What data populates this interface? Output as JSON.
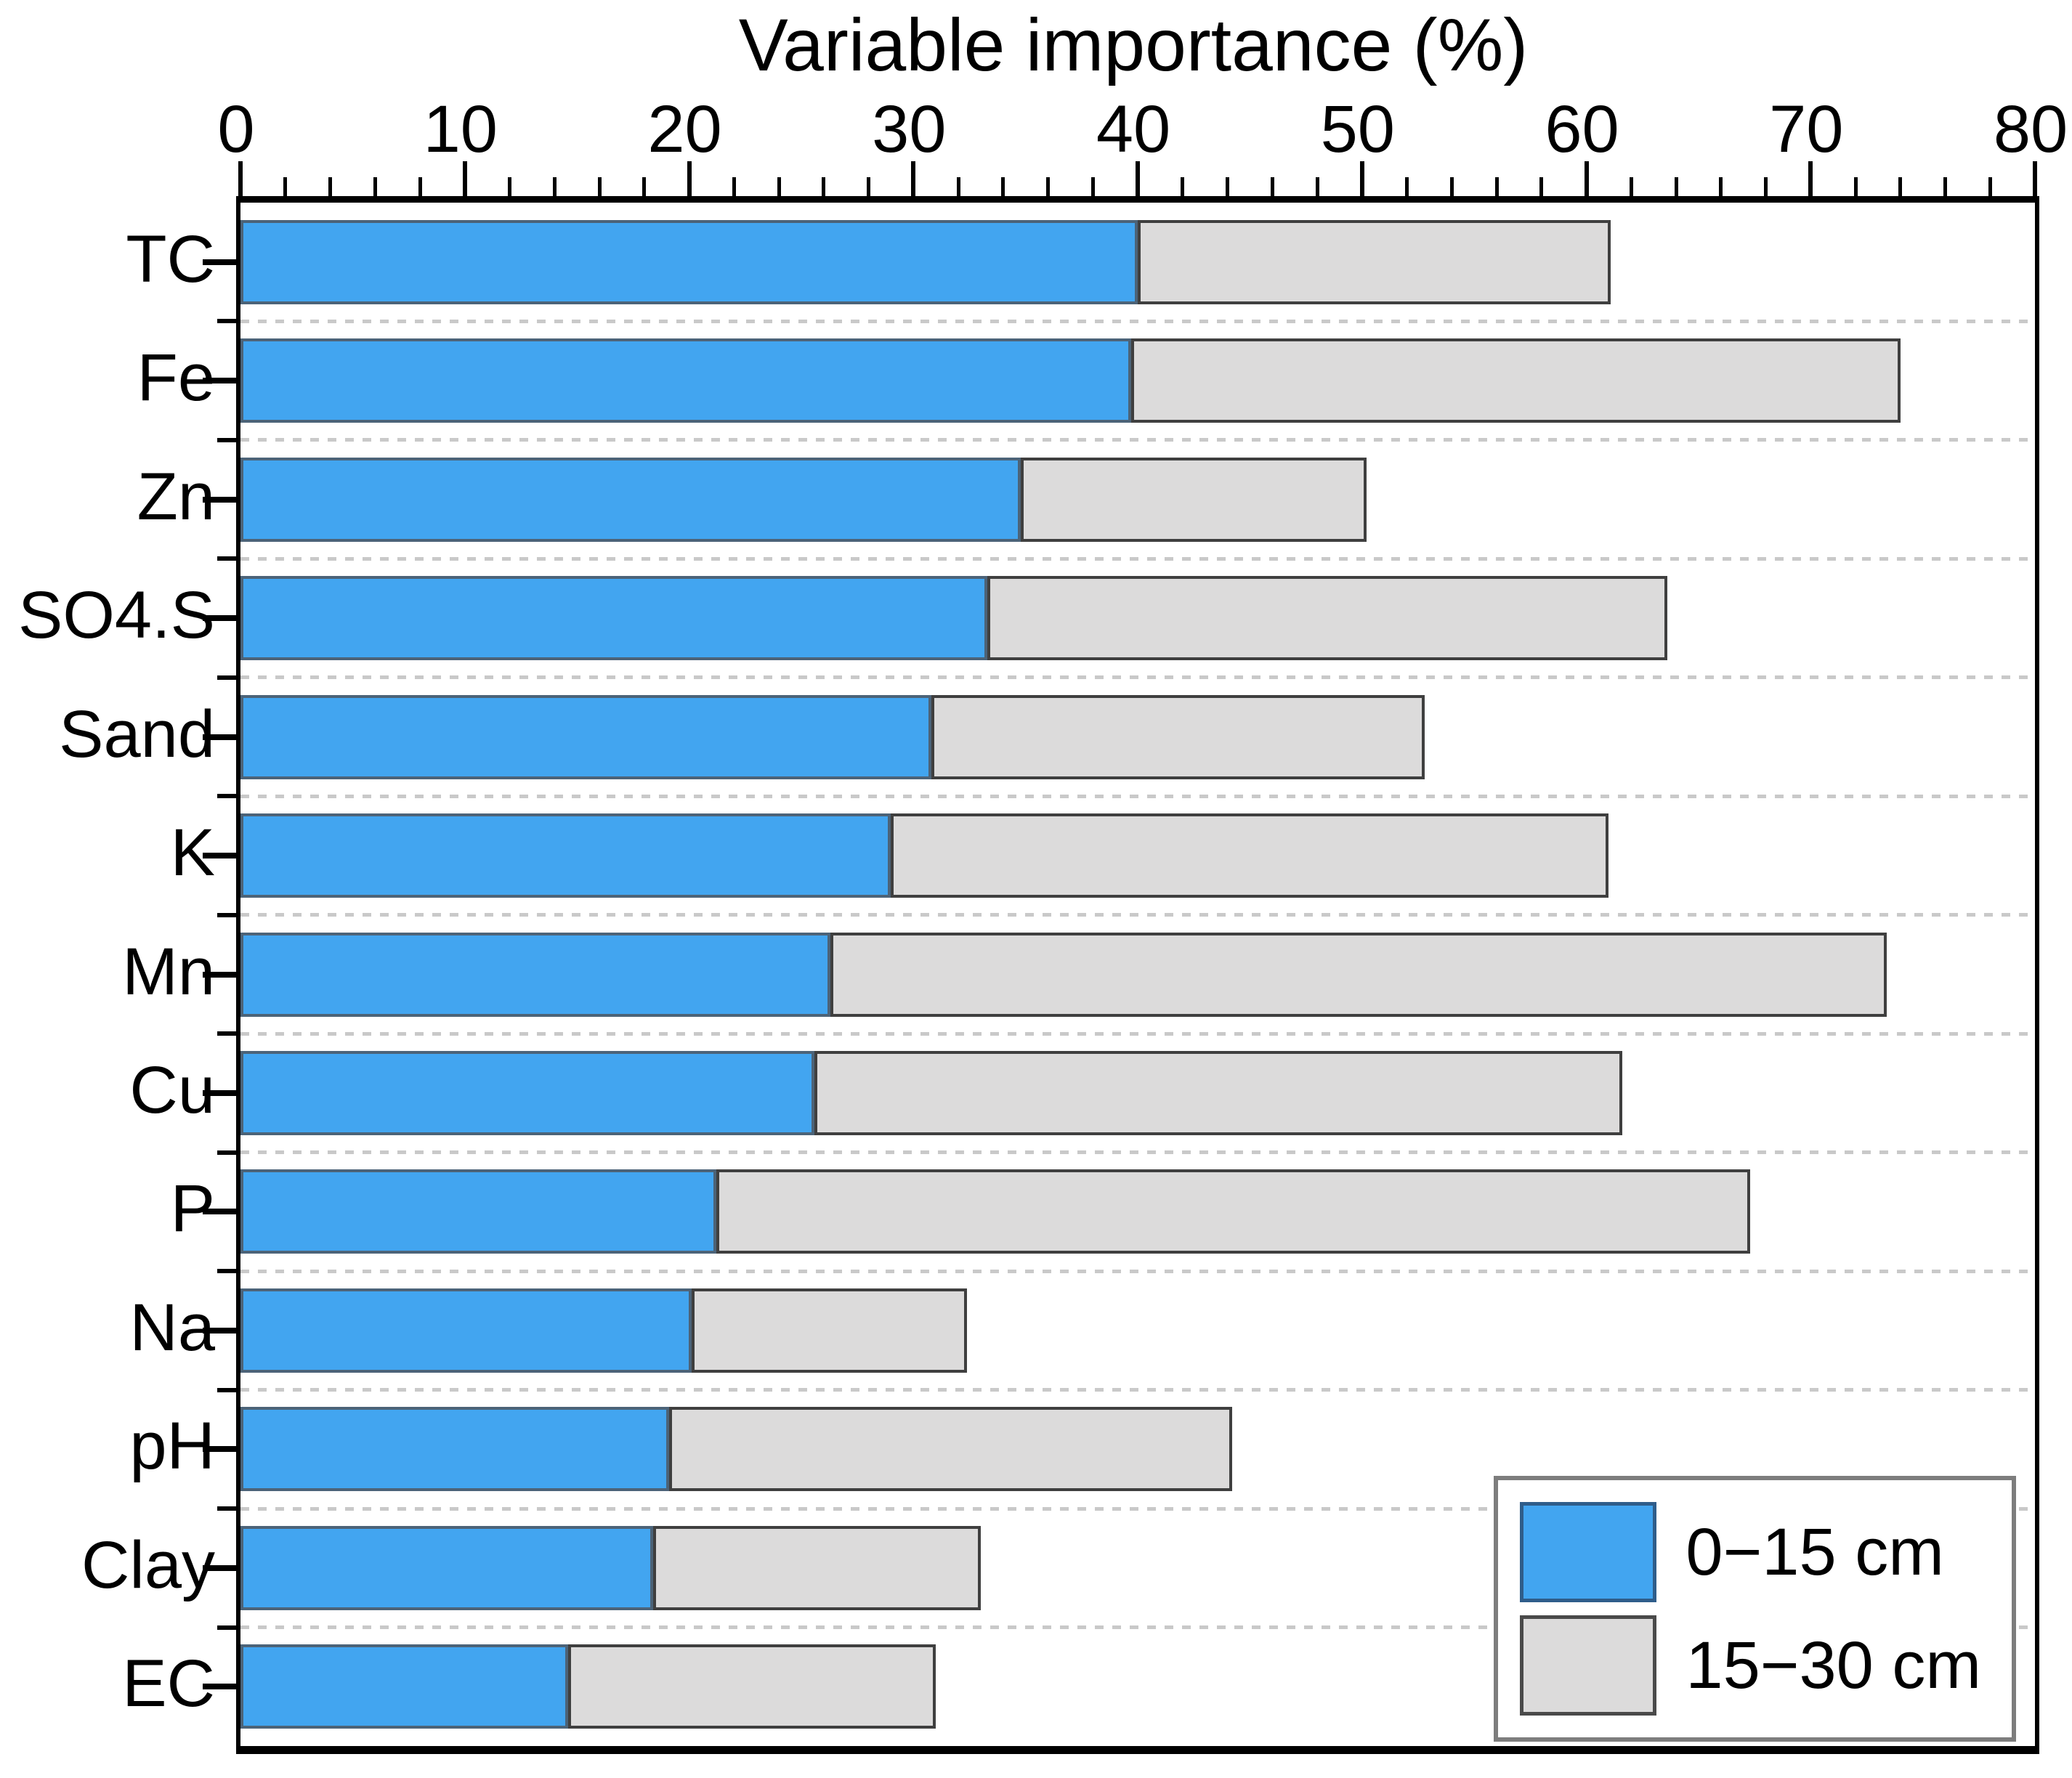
{
  "title": "Variable importance (%)",
  "chart_data": {
    "type": "bar",
    "orientation": "horizontal",
    "stacking": "stacked",
    "title": "Variable importance (%)",
    "xlabel": "Variable importance (%)",
    "ylabel": "",
    "xlim": [
      0,
      80
    ],
    "xticks": [
      0,
      10,
      20,
      30,
      40,
      50,
      60,
      70,
      80
    ],
    "minor_tick_step": 2,
    "grid": "dashed horizontal lines between category rows",
    "legend_position": "bottom-right",
    "categories": [
      "TC",
      "Fe",
      "Zn",
      "SO4.S",
      "Sand",
      "K",
      "Mn",
      "Cu",
      "P",
      "Na",
      "pH",
      "Clay",
      "EC"
    ],
    "series": [
      {
        "name": "0−15 cm",
        "color": "#42a5f0",
        "values": [
          40.0,
          39.7,
          34.8,
          33.3,
          30.8,
          29.0,
          26.3,
          25.6,
          21.2,
          20.1,
          19.1,
          18.4,
          14.6
        ]
      },
      {
        "name": "15−30 cm",
        "color": "#dcdbdb",
        "values": [
          21.1,
          34.3,
          15.4,
          30.3,
          22.0,
          32.0,
          47.1,
          36.0,
          46.1,
          12.3,
          25.1,
          14.6,
          16.4
        ]
      }
    ],
    "stacked_totals": [
      61.1,
      74.0,
      50.2,
      63.6,
      52.8,
      61.0,
      73.4,
      61.6,
      67.3,
      32.4,
      44.2,
      33.0,
      31.0
    ]
  },
  "colors": {
    "series_0_fill": "#42a5f0",
    "series_1_fill": "#dcdbdb",
    "axis": "#000000",
    "gridline": "#c9c9c9",
    "legend_border": "#7d7d7d"
  }
}
